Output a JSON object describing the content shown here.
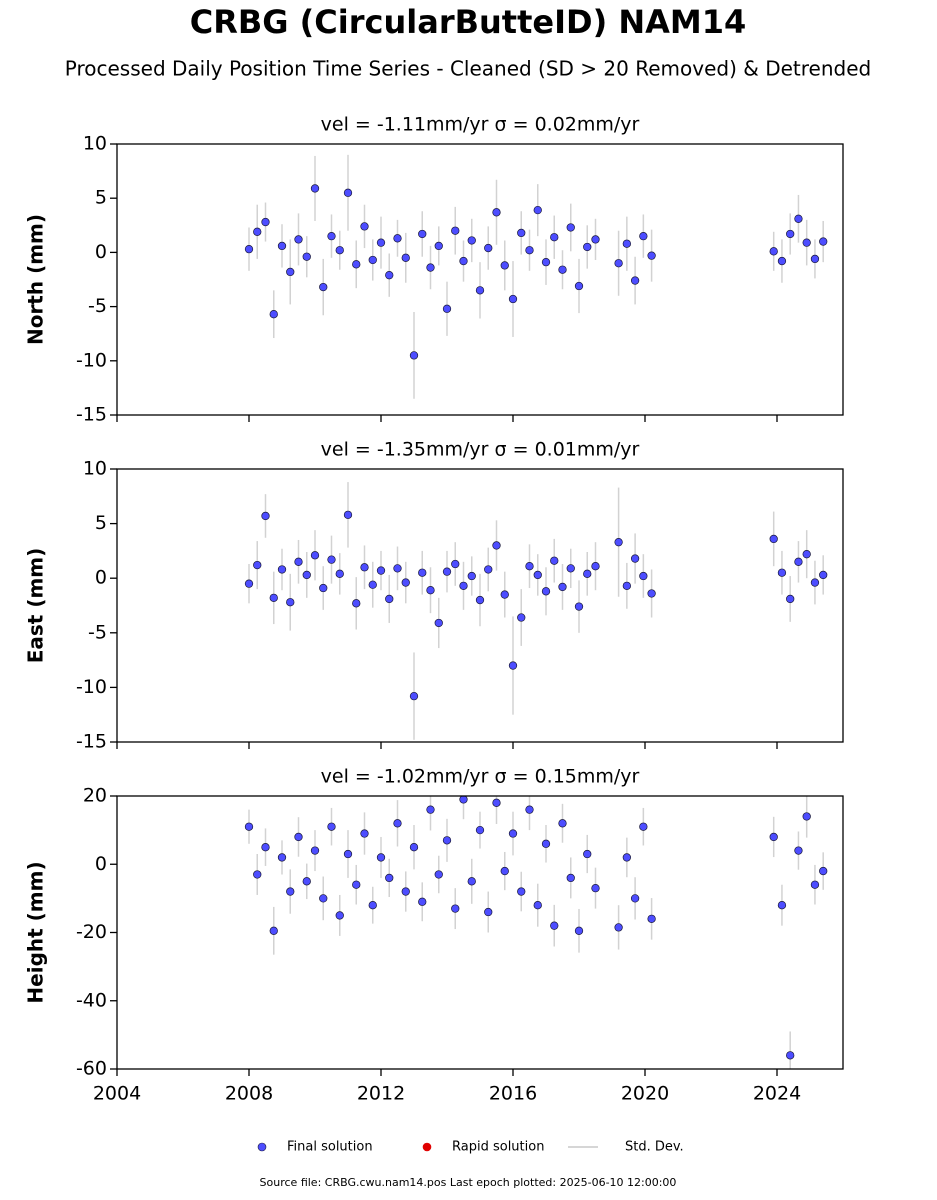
{
  "title": "CRBG (CircularButteID) NAM14",
  "subtitle": "Processed Daily Position Time Series - Cleaned (SD > 20 Removed) & Detrended",
  "legend": [
    {
      "name": "Final solution",
      "color": "#4d4dff"
    },
    {
      "name": "Rapid solution",
      "color": "#e00000"
    },
    {
      "name": "Std. Dev.",
      "color": "#c8c8c8"
    }
  ],
  "source": "Source file: CRBG.cwu.nam14.pos  Last epoch plotted: 2025-06-10 12:00:00",
  "chart_data": [
    {
      "type": "scatter",
      "title": "vel = -1.11mm/yr   σ = 0.02mm/yr",
      "y_label": "North (mm)",
      "xlim": [
        2004,
        2026
      ],
      "xticks": [
        2004,
        2008,
        2012,
        2016,
        2020,
        2024
      ],
      "ylim": [
        -15,
        10
      ],
      "yticks": [
        -15,
        -10,
        -5,
        0,
        5,
        10
      ],
      "x": [
        2008.0,
        2008.25,
        2008.5,
        2008.75,
        2009.0,
        2009.25,
        2009.5,
        2009.75,
        2010.0,
        2010.25,
        2010.5,
        2010.75,
        2011.0,
        2011.25,
        2011.5,
        2011.75,
        2012.0,
        2012.25,
        2012.5,
        2012.75,
        2013.0,
        2013.25,
        2013.5,
        2013.75,
        2014.0,
        2014.25,
        2014.5,
        2014.75,
        2015.0,
        2015.25,
        2015.5,
        2015.75,
        2016.0,
        2016.25,
        2016.5,
        2016.75,
        2017.0,
        2017.25,
        2017.5,
        2017.75,
        2018.0,
        2018.25,
        2018.5,
        2019.2,
        2019.45,
        2019.7,
        2019.95,
        2020.2,
        2023.9,
        2024.15,
        2024.4,
        2024.65,
        2024.9,
        2025.15,
        2025.4
      ],
      "series": [
        {
          "name": "Final solution",
          "color": "#4d4dff",
          "values": [
            0.3,
            1.9,
            2.8,
            -5.7,
            0.6,
            -1.8,
            1.2,
            -0.4,
            5.9,
            -3.2,
            1.5,
            0.2,
            5.5,
            -1.1,
            2.4,
            -0.7,
            0.9,
            -2.1,
            1.3,
            -0.5,
            -9.5,
            1.7,
            -1.4,
            0.6,
            -5.2,
            2.0,
            -0.8,
            1.1,
            -3.5,
            0.4,
            3.7,
            -1.2,
            -4.3,
            1.8,
            0.2,
            3.9,
            -0.9,
            1.4,
            -1.6,
            2.3,
            -3.1,
            0.5,
            1.2,
            -1.0,
            0.8,
            -2.6,
            1.5,
            -0.3,
            0.1,
            -0.8,
            1.7,
            3.1,
            0.9,
            -0.6,
            1.0
          ],
          "errors": [
            2,
            2.5,
            1.8,
            2.2,
            2,
            3,
            2.4,
            1.9,
            3,
            2.6,
            2,
            1.8,
            3.5,
            2.2,
            2,
            1.9,
            2.4,
            2,
            1.7,
            2.3,
            4,
            2.1,
            2,
            1.8,
            2.5,
            2.2,
            1.9,
            2,
            2.6,
            2,
            3,
            2.3,
            3.5,
            2,
            1.9,
            2.4,
            2.1,
            2,
            1.8,
            2.2,
            2.5,
            2,
            1.9,
            3,
            2.5,
            2.2,
            2,
            2.4,
            1.8,
            2,
            1.9,
            2.2,
            2.1,
            1.8,
            1.9
          ]
        }
      ]
    },
    {
      "type": "scatter",
      "title": "vel = -1.35mm/yr   σ = 0.01mm/yr",
      "y_label": "East (mm)",
      "xlim": [
        2004,
        2026
      ],
      "xticks": [
        2004,
        2008,
        2012,
        2016,
        2020,
        2024
      ],
      "ylim": [
        -15,
        10
      ],
      "yticks": [
        -15,
        -10,
        -5,
        0,
        5,
        10
      ],
      "x": [
        2008.0,
        2008.25,
        2008.5,
        2008.75,
        2009.0,
        2009.25,
        2009.5,
        2009.75,
        2010.0,
        2010.25,
        2010.5,
        2010.75,
        2011.0,
        2011.25,
        2011.5,
        2011.75,
        2012.0,
        2012.25,
        2012.5,
        2012.75,
        2013.0,
        2013.25,
        2013.5,
        2013.75,
        2014.0,
        2014.25,
        2014.5,
        2014.75,
        2015.0,
        2015.25,
        2015.5,
        2015.75,
        2016.0,
        2016.25,
        2016.5,
        2016.75,
        2017.0,
        2017.25,
        2017.5,
        2017.75,
        2018.0,
        2018.25,
        2018.5,
        2019.2,
        2019.45,
        2019.7,
        2019.95,
        2020.2,
        2023.9,
        2024.15,
        2024.4,
        2024.65,
        2024.9,
        2025.15,
        2025.4
      ],
      "series": [
        {
          "name": "Final solution",
          "color": "#4d4dff",
          "values": [
            -0.5,
            1.2,
            5.7,
            -1.8,
            0.8,
            -2.2,
            1.5,
            0.3,
            2.1,
            -0.9,
            1.7,
            0.4,
            5.8,
            -2.3,
            1.0,
            -0.6,
            0.7,
            -1.9,
            0.9,
            -0.4,
            -10.8,
            0.5,
            -1.1,
            -4.1,
            0.6,
            1.3,
            -0.7,
            0.2,
            -2.0,
            0.8,
            3.0,
            -1.5,
            -8.0,
            -3.6,
            1.1,
            0.3,
            -1.2,
            1.6,
            -0.8,
            0.9,
            -2.6,
            0.4,
            1.1,
            3.3,
            -0.7,
            1.8,
            0.2,
            -1.4,
            3.6,
            0.5,
            -1.9,
            1.5,
            2.2,
            -0.4,
            0.3
          ],
          "errors": [
            1.8,
            2.2,
            2,
            2.4,
            1.9,
            2.6,
            2,
            2.1,
            2.3,
            2,
            2.2,
            1.9,
            3,
            2.4,
            2,
            2.1,
            1.8,
            2.2,
            2,
            1.9,
            4,
            2,
            2.1,
            2.3,
            1.9,
            2,
            2.2,
            1.8,
            2.4,
            2,
            2.3,
            2.1,
            4.5,
            2.6,
            2,
            1.9,
            2.2,
            2,
            2.1,
            1.8,
            2.4,
            2,
            2.2,
            5,
            2.1,
            2.3,
            2,
            2.2,
            2.5,
            2,
            2.1,
            1.9,
            2.2,
            2,
            1.8
          ]
        }
      ]
    },
    {
      "type": "scatter",
      "title": "vel = -1.02mm/yr   σ = 0.15mm/yr",
      "y_label": "Height (mm)",
      "xlim": [
        2004,
        2026
      ],
      "xticks": [
        2004,
        2008,
        2012,
        2016,
        2020,
        2024
      ],
      "ylim": [
        -60,
        20
      ],
      "yticks": [
        -60,
        -40,
        -20,
        0,
        20
      ],
      "x": [
        2008.0,
        2008.25,
        2008.5,
        2008.75,
        2009.0,
        2009.25,
        2009.5,
        2009.75,
        2010.0,
        2010.25,
        2010.5,
        2010.75,
        2011.0,
        2011.25,
        2011.5,
        2011.75,
        2012.0,
        2012.25,
        2012.5,
        2012.75,
        2013.0,
        2013.25,
        2013.5,
        2013.75,
        2014.0,
        2014.25,
        2014.5,
        2014.75,
        2015.0,
        2015.25,
        2015.5,
        2015.75,
        2016.0,
        2016.25,
        2016.5,
        2016.75,
        2017.0,
        2017.25,
        2017.5,
        2017.75,
        2018.0,
        2018.25,
        2018.5,
        2019.2,
        2019.45,
        2019.7,
        2019.95,
        2020.2,
        2023.9,
        2024.15,
        2024.4,
        2024.65,
        2024.9,
        2025.15,
        2025.4
      ],
      "series": [
        {
          "name": "Final solution",
          "color": "#4d4dff",
          "values": [
            11,
            -3,
            5,
            -19.5,
            2,
            -8,
            8,
            -5,
            4,
            -10,
            11,
            -15,
            3,
            -6,
            9,
            -12,
            2,
            -4,
            12,
            -8,
            5,
            -11,
            16,
            -3,
            7,
            -13,
            19,
            -5,
            10,
            -14,
            18,
            -2,
            9,
            -8,
            16,
            -12,
            6,
            -18,
            12,
            -4,
            -19.5,
            3,
            -7,
            -18.5,
            2,
            -10,
            11,
            -16,
            8,
            -12,
            -56,
            4,
            14,
            -6,
            -2
          ],
          "errors": [
            5,
            6,
            5.5,
            7,
            5,
            6.5,
            5.8,
            5.2,
            6,
            6.4,
            5.5,
            6,
            7,
            5.8,
            6.2,
            5.4,
            6,
            5.6,
            6.8,
            5.9,
            6.5,
            5.7,
            6.1,
            5.5,
            6.3,
            6,
            5.8,
            6.6,
            5.4,
            6,
            6.2,
            5.6,
            6.4,
            5.8,
            6,
            6.3,
            5.5,
            6.1,
            5.7,
            6,
            6.4,
            5.6,
            6,
            6.5,
            5.8,
            6.2,
            5.5,
            6.1,
            5.9,
            6,
            7,
            5.6,
            6.2,
            5.8,
            5.5
          ]
        }
      ]
    }
  ]
}
